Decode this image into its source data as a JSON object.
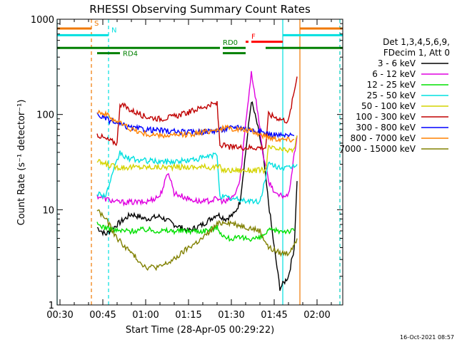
{
  "chart_data": {
    "type": "line",
    "title": "RHESSI Observing Summary Count Rates",
    "xlabel": "Start Time (28-Apr-05 00:29:22)",
    "ylabel": "Count Rate (s⁻¹ detector⁻¹)",
    "y_scale": "log",
    "ylim": [
      1,
      1000
    ],
    "xlim": [
      "00:29",
      "02:09"
    ],
    "x_ticks": [
      "00:30",
      "00:45",
      "01:00",
      "01:15",
      "01:30",
      "01:45",
      "02:00"
    ],
    "y_ticks": [
      "1",
      "10",
      "100",
      "1000"
    ],
    "grid": false,
    "legend_position": "right",
    "legend_header": [
      "Det 1,3,4,5,6,9,",
      "FDecim 1, Att 0"
    ],
    "timestamp": "16-Oct-2021 08:57",
    "markers": [
      {
        "label": "S",
        "color": "#f07800",
        "segments": [
          [
            "00:29",
            "00:41"
          ],
          [
            "01:54",
            "02:09"
          ]
        ],
        "y_level": 800
      },
      {
        "label": "N",
        "color": "#00e0e0",
        "segments": [
          [
            "00:29",
            "00:47"
          ],
          [
            "01:48",
            "02:09"
          ]
        ],
        "y_level": 680
      },
      {
        "label": "F",
        "color": "#ff0000",
        "segments": [
          [
            "01:35",
            "01:36"
          ],
          [
            "01:37",
            "01:48"
          ]
        ],
        "y_level": 580
      },
      {
        "label": "RD0",
        "color": "#008000",
        "segments": [
          [
            "00:29",
            "01:26"
          ],
          [
            "01:27",
            "01:35"
          ],
          [
            "01:42",
            "02:09"
          ]
        ],
        "y_level": 500
      },
      {
        "label": "RD4",
        "color": "#008000",
        "segments": [
          [
            "00:43",
            "00:51"
          ],
          [
            "01:27",
            "01:35"
          ]
        ],
        "y_level": 440
      }
    ],
    "vlines": [
      {
        "x": "00:29",
        "color": "#00e0e0",
        "style": "solid"
      },
      {
        "x": "00:41",
        "color": "#f07800",
        "style": "dashed"
      },
      {
        "x": "00:47",
        "color": "#00e0e0",
        "style": "dashed"
      },
      {
        "x": "01:48",
        "color": "#00e0e0",
        "style": "solid"
      },
      {
        "x": "01:54",
        "color": "#f07800",
        "style": "solid"
      },
      {
        "x": "02:08",
        "color": "#f07800",
        "style": "dashed"
      },
      {
        "x": "02:08",
        "color": "#00e0e0",
        "style": "dashed"
      }
    ],
    "series": [
      {
        "name": "3 - 6 keV",
        "color": "#000000",
        "points": [
          [
            "00:43",
            6.5
          ],
          [
            "00:46",
            5.5
          ],
          [
            "00:50",
            7
          ],
          [
            "00:55",
            9
          ],
          [
            "01:00",
            8
          ],
          [
            "01:05",
            8.5
          ],
          [
            "01:10",
            7
          ],
          [
            "01:15",
            6
          ],
          [
            "01:20",
            7
          ],
          [
            "01:25",
            9
          ],
          [
            "01:28",
            8
          ],
          [
            "01:31",
            9
          ],
          [
            "01:33",
            12
          ],
          [
            "01:35",
            40
          ],
          [
            "01:37",
            140
          ],
          [
            "01:39",
            80
          ],
          [
            "01:41",
            40
          ],
          [
            "01:43",
            12
          ],
          [
            "01:45",
            4
          ],
          [
            "01:47",
            1.5
          ],
          [
            "01:50",
            2
          ],
          [
            "01:52",
            4
          ],
          [
            "01:53",
            20
          ]
        ]
      },
      {
        "name": "6 - 12 keV",
        "color": "#e000e0",
        "points": [
          [
            "00:43",
            14
          ],
          [
            "00:46",
            13
          ],
          [
            "00:50",
            12
          ],
          [
            "00:55",
            12
          ],
          [
            "01:00",
            12
          ],
          [
            "01:05",
            14
          ],
          [
            "01:08",
            25
          ],
          [
            "01:10",
            15
          ],
          [
            "01:15",
            13
          ],
          [
            "01:20",
            12
          ],
          [
            "01:25",
            13
          ],
          [
            "01:28",
            12
          ],
          [
            "01:31",
            14
          ],
          [
            "01:33",
            20
          ],
          [
            "01:35",
            80
          ],
          [
            "01:37",
            280
          ],
          [
            "01:39",
            120
          ],
          [
            "01:41",
            40
          ],
          [
            "01:43",
            20
          ],
          [
            "01:46",
            14
          ],
          [
            "01:50",
            14
          ],
          [
            "01:53",
            60
          ]
        ]
      },
      {
        "name": "12 - 25 keV",
        "color": "#00e000",
        "points": [
          [
            "00:43",
            7
          ],
          [
            "00:46",
            6.5
          ],
          [
            "00:50",
            6
          ],
          [
            "00:55",
            6
          ],
          [
            "01:00",
            6.2
          ],
          [
            "01:05",
            6
          ],
          [
            "01:10",
            6
          ],
          [
            "01:15",
            6
          ],
          [
            "01:20",
            6
          ],
          [
            "01:25",
            6.5
          ],
          [
            "01:28",
            5
          ],
          [
            "01:32",
            5
          ],
          [
            "01:36",
            5
          ],
          [
            "01:40",
            5
          ],
          [
            "01:43",
            6
          ],
          [
            "01:47",
            6
          ],
          [
            "01:52",
            6
          ]
        ]
      },
      {
        "name": "25 - 50 keV",
        "color": "#00e0e0",
        "points": [
          [
            "00:43",
            15
          ],
          [
            "00:46",
            14
          ],
          [
            "00:51",
            40
          ],
          [
            "00:53",
            35
          ],
          [
            "00:58",
            33
          ],
          [
            "01:05",
            32
          ],
          [
            "01:10",
            32
          ],
          [
            "01:15",
            33
          ],
          [
            "01:20",
            35
          ],
          [
            "01:25",
            38
          ],
          [
            "01:26",
            14
          ],
          [
            "01:30",
            13
          ],
          [
            "01:35",
            12.5
          ],
          [
            "01:40",
            12
          ],
          [
            "01:43",
            30
          ],
          [
            "01:47",
            28
          ],
          [
            "01:50",
            27
          ],
          [
            "01:53",
            30
          ]
        ]
      },
      {
        "name": "50 - 100 keV",
        "color": "#d4d400",
        "points": [
          [
            "00:43",
            32
          ],
          [
            "00:46",
            30
          ],
          [
            "00:50",
            28
          ],
          [
            "01:00",
            28
          ],
          [
            "01:10",
            28
          ],
          [
            "01:20",
            28
          ],
          [
            "01:26",
            28
          ],
          [
            "01:27",
            26
          ],
          [
            "01:35",
            26
          ],
          [
            "01:42",
            26
          ],
          [
            "01:43",
            45
          ],
          [
            "01:48",
            42
          ],
          [
            "01:52",
            42
          ],
          [
            "01:53",
            60
          ]
        ]
      },
      {
        "name": "100 - 300 keV",
        "color": "#c00000",
        "points": [
          [
            "00:43",
            62
          ],
          [
            "00:46",
            55
          ],
          [
            "00:50",
            50
          ],
          [
            "00:51",
            130
          ],
          [
            "00:55",
            110
          ],
          [
            "01:00",
            95
          ],
          [
            "01:05",
            90
          ],
          [
            "01:10",
            95
          ],
          [
            "01:15",
            105
          ],
          [
            "01:20",
            120
          ],
          [
            "01:25",
            130
          ],
          [
            "01:26",
            48
          ],
          [
            "01:30",
            45
          ],
          [
            "01:35",
            45
          ],
          [
            "01:42",
            45
          ],
          [
            "01:43",
            100
          ],
          [
            "01:47",
            90
          ],
          [
            "01:50",
            85
          ],
          [
            "01:53",
            250
          ]
        ]
      },
      {
        "name": "300 - 800 keV",
        "color": "#0000ff",
        "points": [
          [
            "00:43",
            100
          ],
          [
            "00:46",
            90
          ],
          [
            "00:50",
            80
          ],
          [
            "00:55",
            72
          ],
          [
            "01:00",
            70
          ],
          [
            "01:05",
            68
          ],
          [
            "01:10",
            66
          ],
          [
            "01:15",
            65
          ],
          [
            "01:20",
            66
          ],
          [
            "01:25",
            68
          ],
          [
            "01:28",
            70
          ],
          [
            "01:32",
            75
          ],
          [
            "01:36",
            70
          ],
          [
            "01:40",
            66
          ],
          [
            "01:44",
            62
          ],
          [
            "01:48",
            60
          ],
          [
            "01:52",
            60
          ]
        ]
      },
      {
        "name": "800 - 7000 keV",
        "color": "#ff8000",
        "points": [
          [
            "00:43",
            110
          ],
          [
            "00:46",
            100
          ],
          [
            "00:50",
            85
          ],
          [
            "00:55",
            70
          ],
          [
            "01:00",
            62
          ],
          [
            "01:05",
            60
          ],
          [
            "01:10",
            60
          ],
          [
            "01:15",
            62
          ],
          [
            "01:20",
            65
          ],
          [
            "01:25",
            70
          ],
          [
            "01:28",
            72
          ],
          [
            "01:32",
            70
          ],
          [
            "01:36",
            68
          ],
          [
            "01:40",
            62
          ],
          [
            "01:44",
            57
          ],
          [
            "01:48",
            55
          ],
          [
            "01:52",
            55
          ]
        ]
      },
      {
        "name": "7000 - 15000 keV",
        "color": "#808000",
        "points": [
          [
            "00:43",
            10
          ],
          [
            "00:46",
            8
          ],
          [
            "00:50",
            5
          ],
          [
            "00:55",
            3.5
          ],
          [
            "01:00",
            2.5
          ],
          [
            "01:05",
            2.5
          ],
          [
            "01:10",
            3
          ],
          [
            "01:15",
            4
          ],
          [
            "01:20",
            5
          ],
          [
            "01:25",
            7
          ],
          [
            "01:28",
            7.5
          ],
          [
            "01:32",
            7
          ],
          [
            "01:36",
            6.5
          ],
          [
            "01:40",
            6
          ],
          [
            "01:43",
            4
          ],
          [
            "01:47",
            3.5
          ],
          [
            "01:50",
            3.5
          ],
          [
            "01:53",
            5
          ]
        ]
      }
    ]
  }
}
